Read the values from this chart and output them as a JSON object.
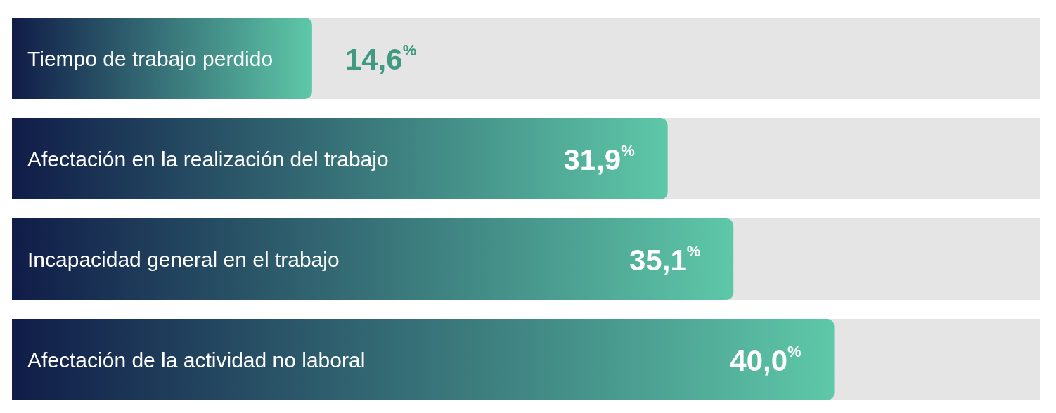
{
  "chart_data": {
    "type": "bar",
    "orientation": "horizontal",
    "categories": [
      "Tiempo de trabajo perdido",
      "Afectación en la realización del trabajo",
      "Incapacidad general en el trabajo",
      "Afectación de la actividad no laboral"
    ],
    "values": [
      14.6,
      31.9,
      35.1,
      40.0
    ],
    "value_labels": [
      "14,6$^{%}$",
      "31,9$^{%}$",
      "35,1$^{%}$",
      "40,0$^{%}$"
    ],
    "color": "#5ec8a8",
    "xlim": [
      0,
      50
    ]
  }
}
